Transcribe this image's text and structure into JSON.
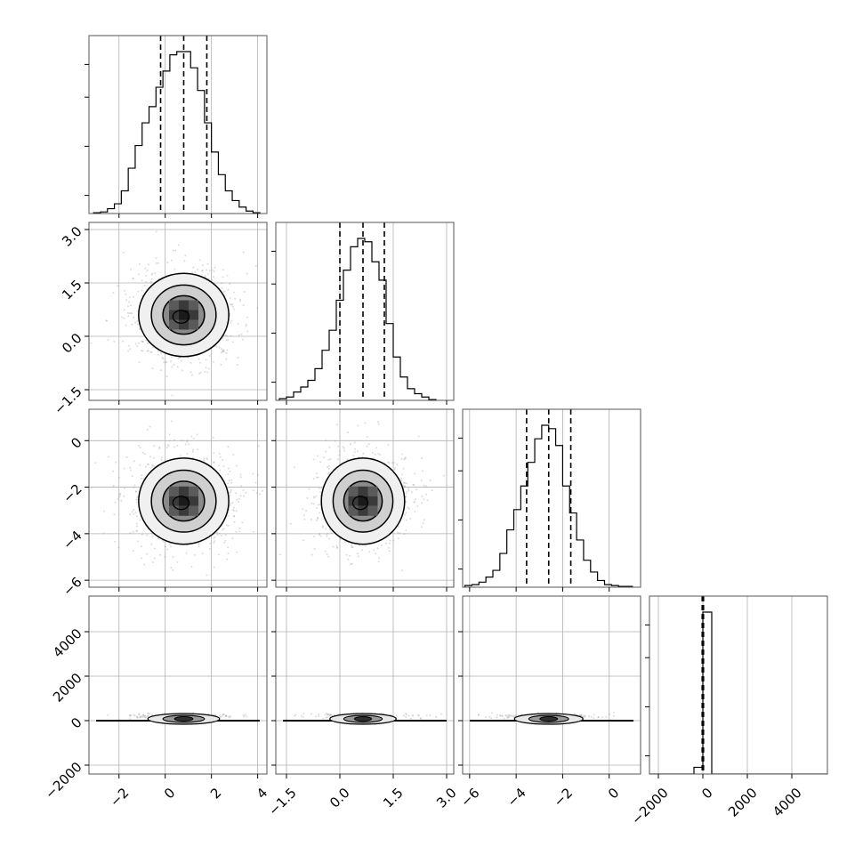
{
  "chart_data": {
    "type": "corner",
    "grid": true,
    "parameters": [
      {
        "range": [
          -3.3,
          4.4
        ],
        "ticks": [
          -2,
          0,
          2,
          4
        ],
        "tick_labels": [
          "−2",
          "0",
          "2",
          "4"
        ],
        "quantiles": [
          -0.2,
          0.8,
          1.8
        ]
      },
      {
        "range": [
          -1.8,
          3.2
        ],
        "ticks": [
          -1.5,
          0.0,
          1.5,
          3.0
        ],
        "tick_labels": [
          "−1.5",
          "0.0",
          "1.5",
          "3.0"
        ],
        "quantiles": [
          0.0,
          0.65,
          1.25
        ]
      },
      {
        "range": [
          -6.3,
          1.35
        ],
        "ticks": [
          -6,
          -4,
          -2,
          0
        ],
        "tick_labels": [
          "−6",
          "−4",
          "−2",
          "0"
        ],
        "quantiles": [
          -3.55,
          -2.6,
          -1.65
        ]
      },
      {
        "range": [
          -2400,
          5600
        ],
        "ticks": [
          -2000,
          0,
          2000,
          4000
        ],
        "tick_labels": [
          "−2000",
          "0",
          "2000",
          "4000"
        ],
        "quantiles": [
          -30,
          0,
          30
        ]
      }
    ],
    "histograms": [
      {
        "param": 0,
        "bin_edges": [
          -3.1,
          -2.8,
          -2.5,
          -2.2,
          -1.9,
          -1.6,
          -1.3,
          -1.0,
          -0.7,
          -0.4,
          -0.1,
          0.2,
          0.5,
          0.8,
          1.1,
          1.4,
          1.7,
          2.0,
          2.3,
          2.6,
          2.9,
          3.2,
          3.5,
          3.8,
          4.1
        ],
        "counts": [
          0.005,
          0.01,
          0.03,
          0.06,
          0.14,
          0.28,
          0.42,
          0.56,
          0.66,
          0.78,
          0.88,
          0.98,
          1.0,
          1.0,
          0.9,
          0.76,
          0.56,
          0.38,
          0.24,
          0.14,
          0.08,
          0.04,
          0.015,
          0.005
        ]
      },
      {
        "param": 1,
        "bin_edges": [
          -1.7,
          -1.5,
          -1.3,
          -1.1,
          -0.9,
          -0.7,
          -0.5,
          -0.3,
          -0.1,
          0.1,
          0.3,
          0.5,
          0.7,
          0.9,
          1.1,
          1.3,
          1.5,
          1.7,
          1.9,
          2.1,
          2.3,
          2.5,
          2.7
        ],
        "counts": [
          0.01,
          0.02,
          0.05,
          0.08,
          0.12,
          0.19,
          0.3,
          0.42,
          0.6,
          0.78,
          0.92,
          0.97,
          0.95,
          0.83,
          0.72,
          0.46,
          0.26,
          0.14,
          0.07,
          0.04,
          0.02,
          0.005
        ]
      },
      {
        "param": 2,
        "bin_edges": [
          -6.2,
          -5.9,
          -5.6,
          -5.3,
          -5.0,
          -4.7,
          -4.4,
          -4.1,
          -3.8,
          -3.5,
          -3.2,
          -2.9,
          -2.6,
          -2.3,
          -2.0,
          -1.7,
          -1.4,
          -1.1,
          -0.8,
          -0.5,
          -0.2,
          0.1,
          0.4,
          0.7,
          1.0
        ],
        "counts": [
          0.01,
          0.015,
          0.03,
          0.06,
          0.1,
          0.2,
          0.34,
          0.46,
          0.6,
          0.74,
          0.88,
          0.96,
          0.94,
          0.84,
          0.6,
          0.44,
          0.28,
          0.16,
          0.09,
          0.04,
          0.015,
          0.01,
          0.005,
          0.005
        ]
      },
      {
        "param": 3,
        "bin_edges": [
          -2400,
          -2000,
          -1600,
          -1200,
          -800,
          -400,
          0,
          400,
          800,
          1200,
          1600,
          2000,
          2400,
          2800,
          3200,
          3600,
          4000,
          4400,
          4800,
          5200,
          5600
        ],
        "counts": [
          0,
          0,
          0,
          0,
          0,
          0.04,
          0.96,
          0,
          0,
          0,
          0,
          0,
          0,
          0,
          0,
          0,
          0,
          0,
          0,
          0
        ]
      }
    ],
    "pairs": [
      {
        "x": 0,
        "y": 1,
        "center": [
          0.8,
          0.6
        ],
        "sigma": [
          1.0,
          0.6
        ]
      },
      {
        "x": 0,
        "y": 2,
        "center": [
          0.8,
          -2.6
        ],
        "sigma": [
          1.0,
          0.95
        ]
      },
      {
        "x": 1,
        "y": 2,
        "center": [
          0.65,
          -2.6
        ],
        "sigma": [
          0.6,
          0.95
        ]
      },
      {
        "x": 0,
        "y": 3,
        "center": [
          0.8,
          200
        ],
        "sigma": [
          1.0,
          80
        ]
      },
      {
        "x": 1,
        "y": 3,
        "center": [
          0.65,
          200
        ],
        "sigma": [
          0.6,
          80
        ]
      },
      {
        "x": 2,
        "y": 3,
        "center": [
          -2.6,
          200
        ],
        "sigma": [
          0.95,
          80
        ]
      }
    ]
  }
}
